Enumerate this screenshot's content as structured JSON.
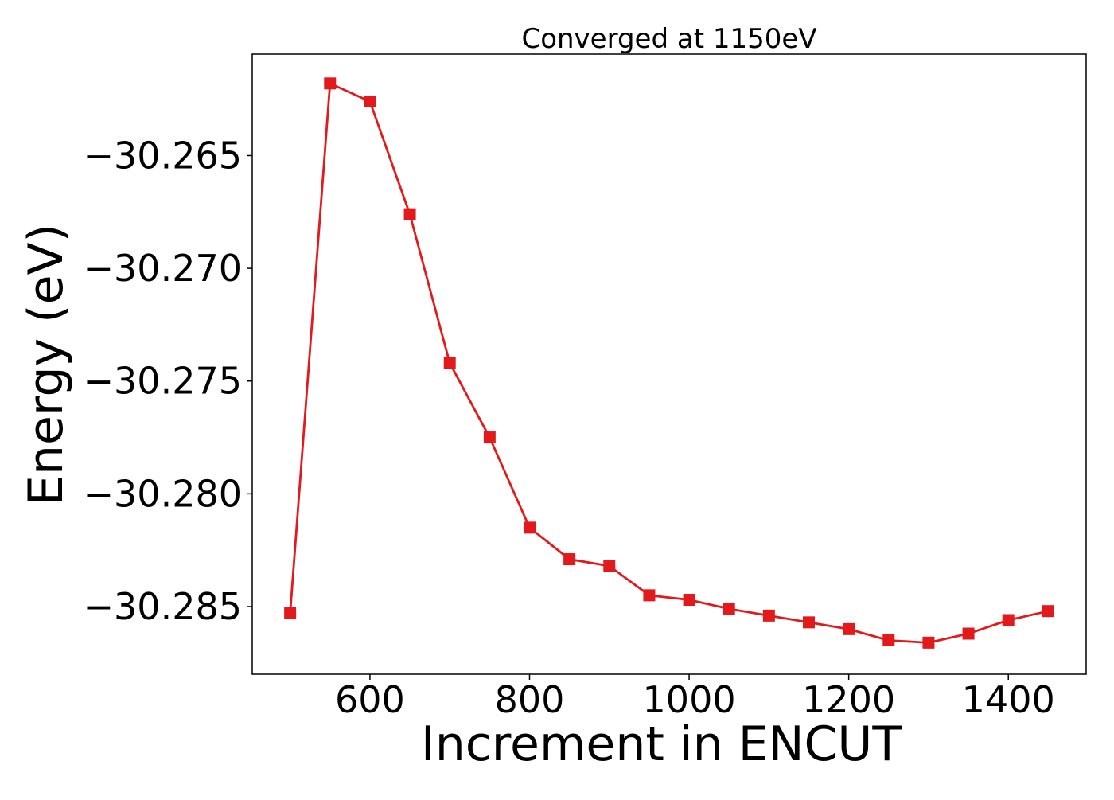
{
  "chart_data": {
    "type": "line",
    "title": "Converged at 1150eV",
    "xlabel": "Increment in ENCUT",
    "ylabel": "Energy (eV)",
    "xlim": [
      452.5,
      1497.5
    ],
    "ylim": [
      -30.288,
      -30.2605
    ],
    "xticks": [
      600,
      800,
      1000,
      1200,
      1400
    ],
    "xtick_labels": [
      "600",
      "800",
      "1000",
      "1200",
      "1400"
    ],
    "yticks": [
      -30.265,
      -30.27,
      -30.275,
      -30.28,
      -30.285
    ],
    "ytick_labels": [
      "−30.265",
      "−30.270",
      "−30.275",
      "−30.280",
      "−30.285"
    ],
    "grid": false,
    "series": [
      {
        "color": "#e31a1c",
        "marker": "square",
        "x": [
          500,
          550,
          600,
          650,
          700,
          750,
          800,
          850,
          900,
          950,
          1000,
          1050,
          1100,
          1150,
          1200,
          1250,
          1300,
          1350,
          1400,
          1450
        ],
        "y": [
          -30.2853,
          -30.2618,
          -30.2626,
          -30.2676,
          -30.2742,
          -30.2775,
          -30.2815,
          -30.2829,
          -30.2832,
          -30.2845,
          -30.2847,
          -30.2851,
          -30.2854,
          -30.2857,
          -30.286,
          -30.2865,
          -30.2866,
          -30.2862,
          -30.2856,
          -30.2852
        ]
      }
    ]
  }
}
